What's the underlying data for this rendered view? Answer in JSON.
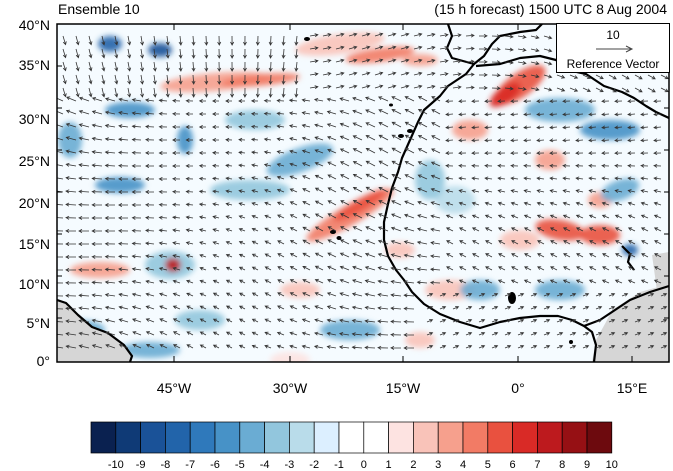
{
  "title_left": "Ensemble 10",
  "title_right": "(15 h forecast) 1500 UTC 8 Aug 2004",
  "y_ticks": [
    "40°N",
    "35°N",
    "30°N",
    "25°N",
    "20°N",
    "15°N",
    "10°N",
    "5°N",
    "0°"
  ],
  "x_ticks": [
    "45°W",
    "30°W",
    "15°W",
    "0°",
    "15°E"
  ],
  "reference_vector": {
    "magnitude": "10",
    "label": "Reference Vector"
  },
  "colorbar": {
    "labels": [
      "-10",
      "-9",
      "-8",
      "-7",
      "-6",
      "-5",
      "-4",
      "-3",
      "-2",
      "-1",
      "0",
      "1",
      "2",
      "3",
      "4",
      "5",
      "6",
      "7",
      "8",
      "9",
      "10"
    ],
    "colors": [
      "#0a2150",
      "#0f3a76",
      "#1a5298",
      "#2264aa",
      "#2f79bb",
      "#4792c7",
      "#6aacd3",
      "#92c6dd",
      "#b9dcea",
      "#dcefff",
      "#ffffff",
      "#ffffff",
      "#fde3e1",
      "#f9c3b9",
      "#f6a08d",
      "#f27b65",
      "#e9513f",
      "#d92a26",
      "#bd1a1e",
      "#961014",
      "#6d0a0e"
    ]
  },
  "map": {
    "lon_range": [
      -60,
      20
    ],
    "lat_range": [
      0,
      40
    ],
    "land_gray": "#d6d6d6",
    "coastline_color": "#000000",
    "vector_color": "#333333"
  }
}
